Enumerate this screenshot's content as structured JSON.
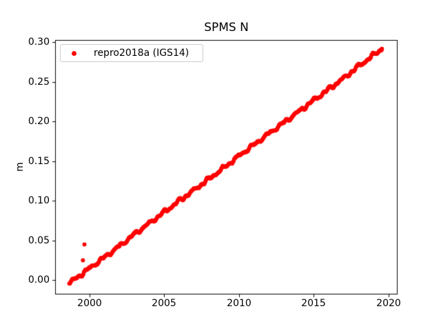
{
  "chart_data": {
    "type": "scatter",
    "title": "SPMS N",
    "xlabel": "",
    "ylabel": "m",
    "grid": false,
    "background": "#ffffff",
    "axes_color": "#000000",
    "xlim": [
      1997.7,
      2020.6
    ],
    "ylim": [
      -0.018,
      0.303
    ],
    "xticks": [
      "2000",
      "2005",
      "2010",
      "2015",
      "2020"
    ],
    "yticks": [
      "0.00",
      "0.05",
      "0.10",
      "0.15",
      "0.20",
      "0.25",
      "0.30"
    ],
    "legend": {
      "position": "upper left",
      "border_color": "#cccccc",
      "entries": [
        {
          "label": "repro2018a (IGS14)",
          "color": "#ff0000",
          "marker": "dot"
        }
      ]
    },
    "series": [
      {
        "name": "repro2018a (IGS14)",
        "color": "#ff0000",
        "marker": "dot",
        "marker_diameter_px": 6,
        "appearance": "dense near-daily samples forming a thick wiggly band",
        "trend_points": [
          [
            1998.65,
            -0.004
          ],
          [
            1999,
            0.001
          ],
          [
            2000,
            0.015
          ],
          [
            2001,
            0.029
          ],
          [
            2002,
            0.043
          ],
          [
            2003,
            0.058
          ],
          [
            2004,
            0.072
          ],
          [
            2005,
            0.086
          ],
          [
            2006,
            0.1
          ],
          [
            2007,
            0.114
          ],
          [
            2008,
            0.128
          ],
          [
            2009,
            0.142
          ],
          [
            2010,
            0.157
          ],
          [
            2011,
            0.171
          ],
          [
            2012,
            0.185
          ],
          [
            2013,
            0.199
          ],
          [
            2014,
            0.213
          ],
          [
            2015,
            0.227
          ],
          [
            2016,
            0.241
          ],
          [
            2017,
            0.255
          ],
          [
            2018,
            0.27
          ],
          [
            2019,
            0.284
          ],
          [
            2019.55,
            0.292
          ]
        ],
        "outliers": [
          [
            1999.66,
            0.045
          ],
          [
            1999.56,
            0.025
          ]
        ],
        "wiggle_amplitude_m": 0.002
      }
    ]
  }
}
